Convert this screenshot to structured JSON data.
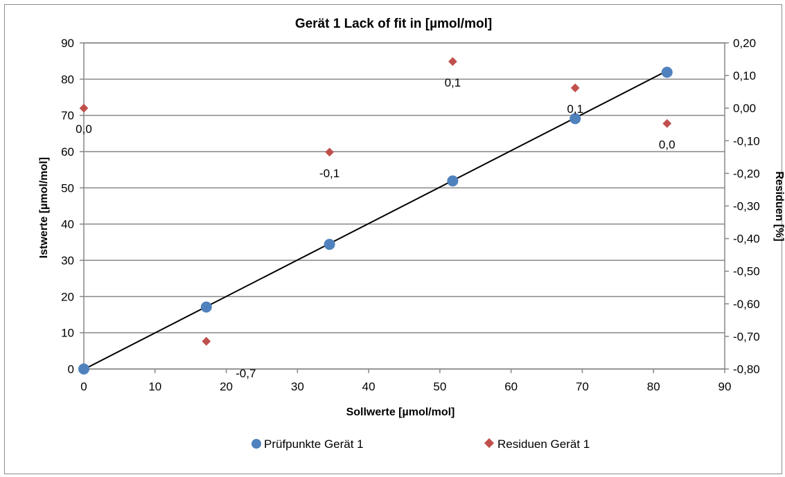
{
  "chart_data": {
    "type": "scatter",
    "title": "Gerät 1 Lack of fit in [µmol/mol]",
    "xlabel": "Sollwerte [µmol/mol]",
    "ylabel": "Istwerte [µmol/mol]",
    "y2label": "Residuen [%]",
    "xlim": [
      0,
      90
    ],
    "ylim": [
      0,
      90
    ],
    "y2lim": [
      -0.8,
      0.2
    ],
    "x_ticks": [
      "0",
      "10",
      "20",
      "30",
      "40",
      "50",
      "60",
      "70",
      "80",
      "90"
    ],
    "y_ticks": [
      "0",
      "10",
      "20",
      "30",
      "40",
      "50",
      "60",
      "70",
      "80",
      "90"
    ],
    "y2_ticks": [
      "-0,80",
      "-0,70",
      "-0,60",
      "-0,50",
      "-0,40",
      "-0,30",
      "-0,20",
      "-0,10",
      "0,00",
      "0,10",
      "0,20"
    ],
    "grid": "horizontal",
    "legend_position": "bottom",
    "series": [
      {
        "name": "Prüfpunkte Gerät 1",
        "axis": "left",
        "marker": "circle",
        "color": "#4f81bd",
        "x": [
          0,
          17.2,
          34.5,
          51.8,
          69.0,
          81.9
        ],
        "y": [
          0,
          17.1,
          34.4,
          51.9,
          69.1,
          81.9
        ]
      },
      {
        "name": "Residuen Gerät 1",
        "axis": "right",
        "marker": "diamond",
        "color": "#c0504d",
        "x": [
          0,
          17.2,
          34.5,
          51.8,
          69.0,
          81.9
        ],
        "y": [
          0.0,
          -0.715,
          -0.135,
          0.143,
          0.062,
          -0.047
        ],
        "labels": [
          "0,0",
          "-0,7",
          "-0,1",
          "0,1",
          "0,1",
          "0,0"
        ]
      }
    ],
    "trendline": {
      "color": "#000000",
      "x": [
        0,
        81.9
      ],
      "y": [
        -0.1,
        82.3
      ]
    }
  }
}
